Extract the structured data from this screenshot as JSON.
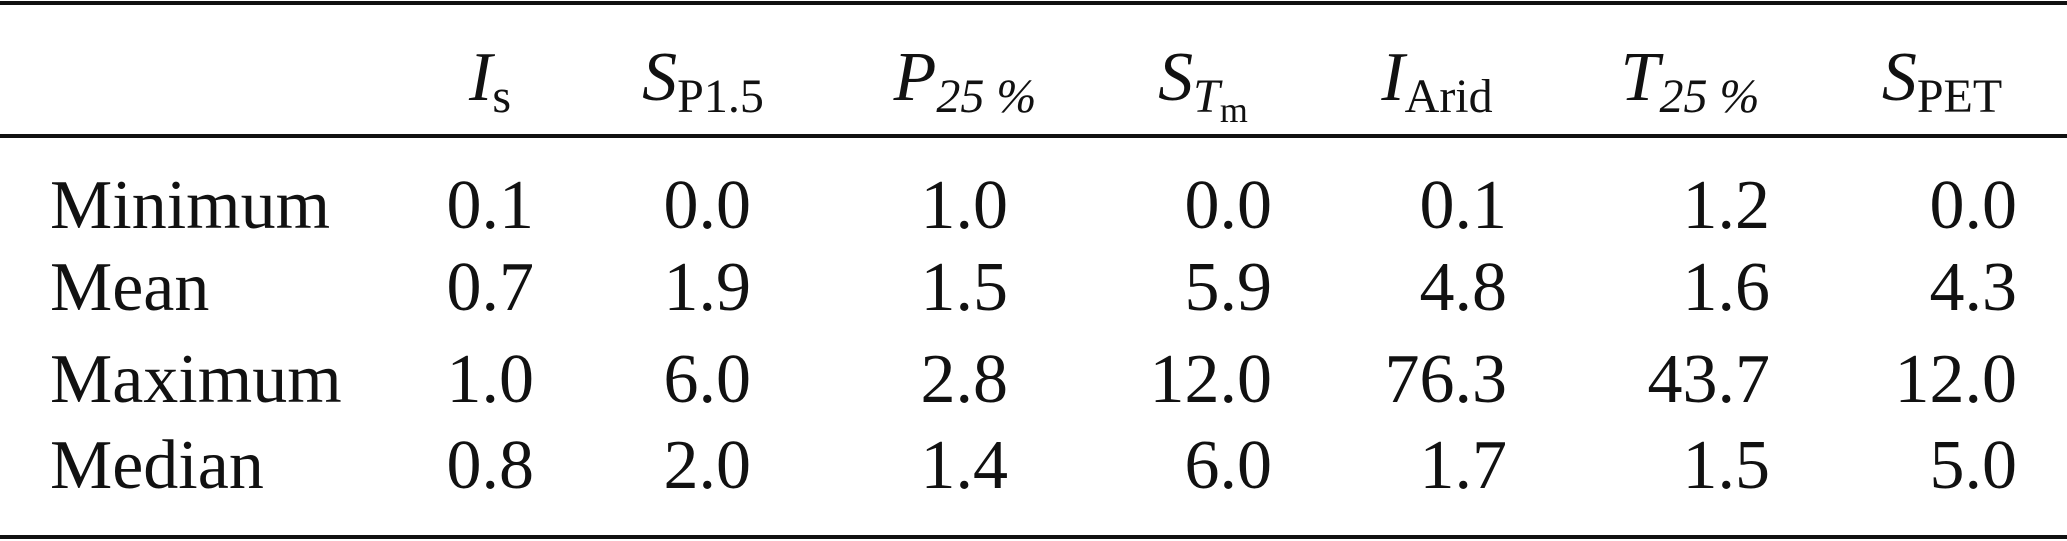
{
  "table": {
    "header": [
      {
        "symbol": "I",
        "subscript": "s"
      },
      {
        "symbol": "S",
        "subscript": "P1.5"
      },
      {
        "symbol": "P",
        "subscript": "25 %",
        "subscript_italic": true
      },
      {
        "symbol": "S",
        "subscript": "T",
        "subscript_italic": true,
        "subsubscript": "m"
      },
      {
        "symbol": "I",
        "subscript": "Arid"
      },
      {
        "symbol": "T",
        "subscript": "25 %",
        "subscript_italic": true
      },
      {
        "symbol": "S",
        "subscript": "PET"
      }
    ],
    "rows": [
      {
        "label": "Minimum",
        "values": [
          "0.1",
          "0.0",
          "1.0",
          "0.0",
          "0.1",
          "1.2",
          "0.0"
        ]
      },
      {
        "label": "Mean",
        "values": [
          "0.7",
          "1.9",
          "1.5",
          "5.9",
          "4.8",
          "1.6",
          "4.3"
        ]
      },
      {
        "label": "Maximum",
        "values": [
          "1.0",
          "6.0",
          "2.8",
          "12.0",
          "76.3",
          "43.7",
          "12.0"
        ]
      },
      {
        "label": "Median",
        "values": [
          "0.8",
          "2.0",
          "1.4",
          "6.0",
          "1.7",
          "1.5",
          "5.0"
        ]
      }
    ]
  }
}
